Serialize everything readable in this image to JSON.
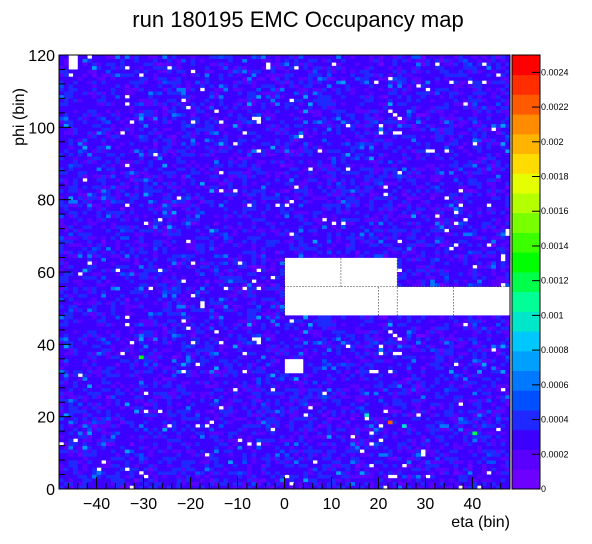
{
  "chart_data": {
    "type": "heatmap",
    "title": "run 180195 EMC  Occupancy map",
    "xlabel": "eta (bin)",
    "ylabel": "phi (bin)",
    "xlim": [
      -48,
      48
    ],
    "ylim": [
      0,
      120
    ],
    "x_ticks": [
      -40,
      -30,
      -20,
      -10,
      0,
      10,
      20,
      30,
      40
    ],
    "y_ticks": [
      0,
      20,
      40,
      60,
      80,
      100,
      120
    ],
    "x_tick_labels": [
      "−40",
      "−30",
      "−20",
      "−10",
      "0",
      "10",
      "20",
      "30",
      "40"
    ],
    "y_tick_labels": [
      "0",
      "20",
      "40",
      "60",
      "80",
      "100",
      "120"
    ],
    "bins": {
      "nx": 96,
      "ny": 120,
      "x_start": -48,
      "y_start": 0,
      "bin_width": 1
    },
    "typical_value": 0.0003,
    "typical_range": [
      0.0001,
      0.0006
    ],
    "empty_regions": [
      {
        "x": [
          0,
          24
        ],
        "y": [
          48,
          64
        ]
      },
      {
        "x": [
          24,
          48
        ],
        "y": [
          48,
          56
        ]
      },
      {
        "x": [
          0,
          4
        ],
        "y": [
          32,
          36
        ]
      },
      {
        "x": [
          -46,
          -44
        ],
        "y": [
          116,
          120
        ]
      }
    ],
    "hot_cells": [
      {
        "x": -31,
        "y": 36,
        "value": 0.0013
      },
      {
        "x": 22,
        "y": 18,
        "value": 0.0022
      },
      {
        "x": 40,
        "y": 15,
        "value": 0.0012
      },
      {
        "x": 17,
        "y": 20,
        "value": 0.001
      },
      {
        "x": 25,
        "y": 17,
        "value": 0.001
      }
    ],
    "colorbar": {
      "min": 0,
      "max": 0.0025,
      "ticks": [
        0,
        0.0002,
        0.0004,
        0.0006,
        0.0008,
        0.001,
        0.0012,
        0.0014,
        0.0016,
        0.0018,
        0.002,
        0.0022,
        0.0024
      ],
      "tick_labels": [
        "0",
        "0.0002",
        "0.0004",
        "0.0006",
        "0.0008",
        "0.001",
        "0.0012",
        "0.0014",
        "0.0016",
        "0.0018",
        "0.002",
        "0.0022",
        "0.0024"
      ]
    },
    "grid": false
  }
}
